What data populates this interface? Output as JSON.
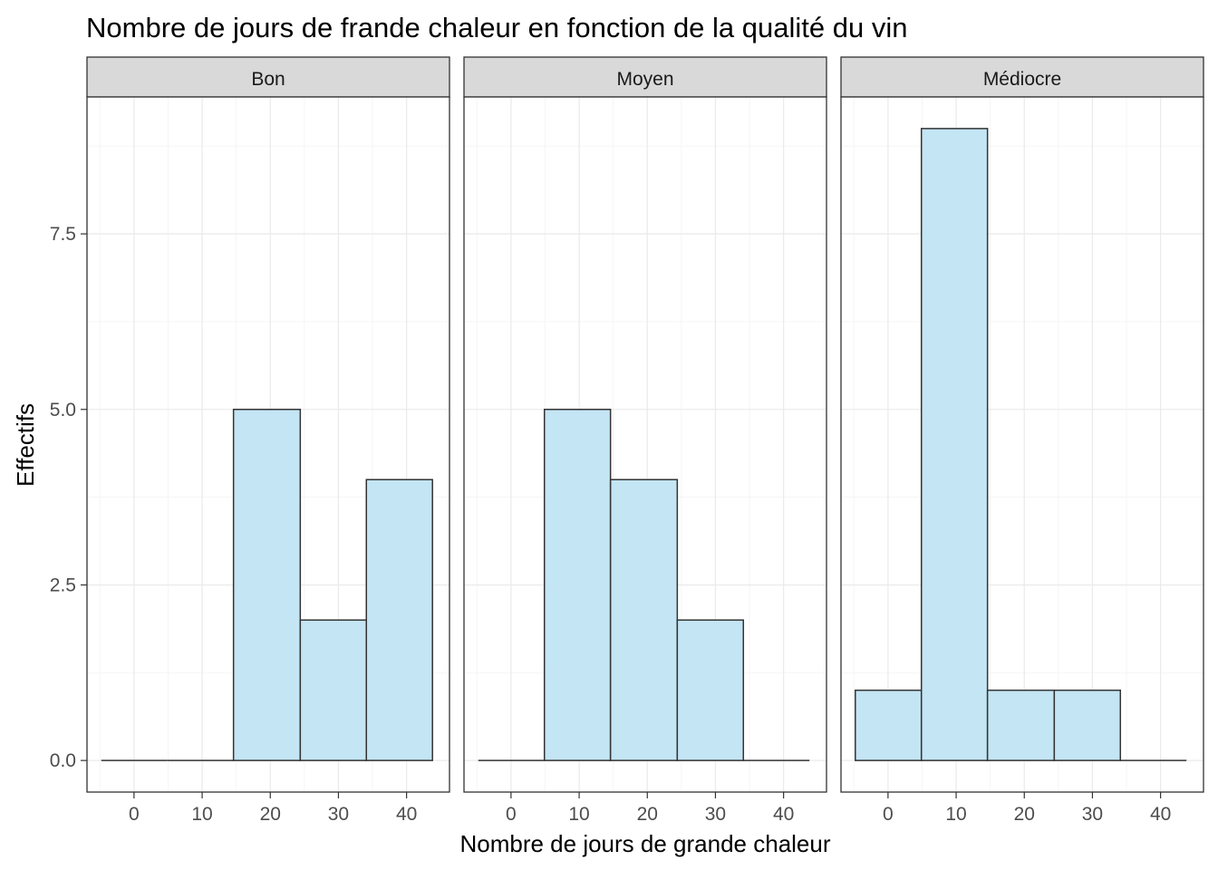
{
  "chart_data": {
    "type": "bar",
    "title": "Nombre de jours de frande chaleur en fonction de la qualité du vin",
    "xlabel": "Nombre de jours de grande chaleur",
    "ylabel": "Effectifs",
    "xlim": [
      -6.9,
      46.3
    ],
    "ylim": [
      -0.45,
      9.45
    ],
    "x_ticks": [
      0,
      10,
      20,
      30,
      40
    ],
    "x_tick_labels": [
      "0",
      "10",
      "20",
      "30",
      "40"
    ],
    "y_ticks": [
      0,
      2.5,
      5,
      7.5
    ],
    "y_tick_labels": [
      "0.0",
      "2.5",
      "5.0",
      "7.5"
    ],
    "bin_edges": [
      -4.8,
      4.9,
      14.6,
      24.4,
      34.1,
      43.8
    ],
    "facets": [
      {
        "name": "Bon",
        "values": [
          0,
          0,
          5,
          2,
          4
        ]
      },
      {
        "name": "Moyen",
        "values": [
          0,
          5,
          4,
          2,
          0
        ]
      },
      {
        "name": "Médiocre",
        "values": [
          1,
          9,
          1,
          1,
          0
        ]
      }
    ],
    "grid": true,
    "colors": {
      "bar_fill": "#c3e5f4",
      "bar_stroke": "#333333",
      "strip_fill": "#d9d9d9",
      "panel_border": "#333333",
      "grid_major": "#ebebeb",
      "grid_minor": "#f5f5f5"
    }
  }
}
